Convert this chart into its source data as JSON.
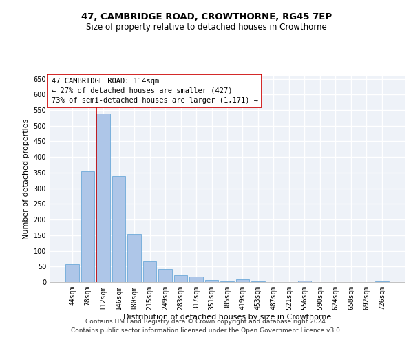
{
  "title_line1": "47, CAMBRIDGE ROAD, CROWTHORNE, RG45 7EP",
  "title_line2": "Size of property relative to detached houses in Crowthorne",
  "xlabel": "Distribution of detached houses by size in Crowthorne",
  "ylabel": "Number of detached properties",
  "bar_color": "#aec6e8",
  "bar_edge_color": "#5a9fd4",
  "background_color": "#eef2f8",
  "grid_color": "#ffffff",
  "annotation_line_color": "#cc0000",
  "annotation_box_color": "#cc0000",
  "annotation_text": "47 CAMBRIDGE ROAD: 114sqm\n← 27% of detached houses are smaller (427)\n73% of semi-detached houses are larger (1,171) →",
  "categories": [
    "44sqm",
    "78sqm",
    "112sqm",
    "146sqm",
    "180sqm",
    "215sqm",
    "249sqm",
    "283sqm",
    "317sqm",
    "351sqm",
    "385sqm",
    "419sqm",
    "453sqm",
    "487sqm",
    "521sqm",
    "556sqm",
    "590sqm",
    "624sqm",
    "658sqm",
    "692sqm",
    "726sqm"
  ],
  "bar_values": [
    57,
    355,
    540,
    338,
    155,
    67,
    41,
    22,
    17,
    6,
    2,
    8,
    2,
    0,
    0,
    4,
    0,
    0,
    0,
    0,
    3
  ],
  "ylim": [
    0,
    660
  ],
  "yticks": [
    0,
    50,
    100,
    150,
    200,
    250,
    300,
    350,
    400,
    450,
    500,
    550,
    600,
    650
  ],
  "marker_bin_index": 2,
  "footer1": "Contains HM Land Registry data © Crown copyright and database right 2024.",
  "footer2": "Contains public sector information licensed under the Open Government Licence v3.0.",
  "title_fontsize": 9.5,
  "subtitle_fontsize": 8.5,
  "tick_fontsize": 7,
  "label_fontsize": 8,
  "annotation_fontsize": 7.5,
  "footer_fontsize": 6.5
}
